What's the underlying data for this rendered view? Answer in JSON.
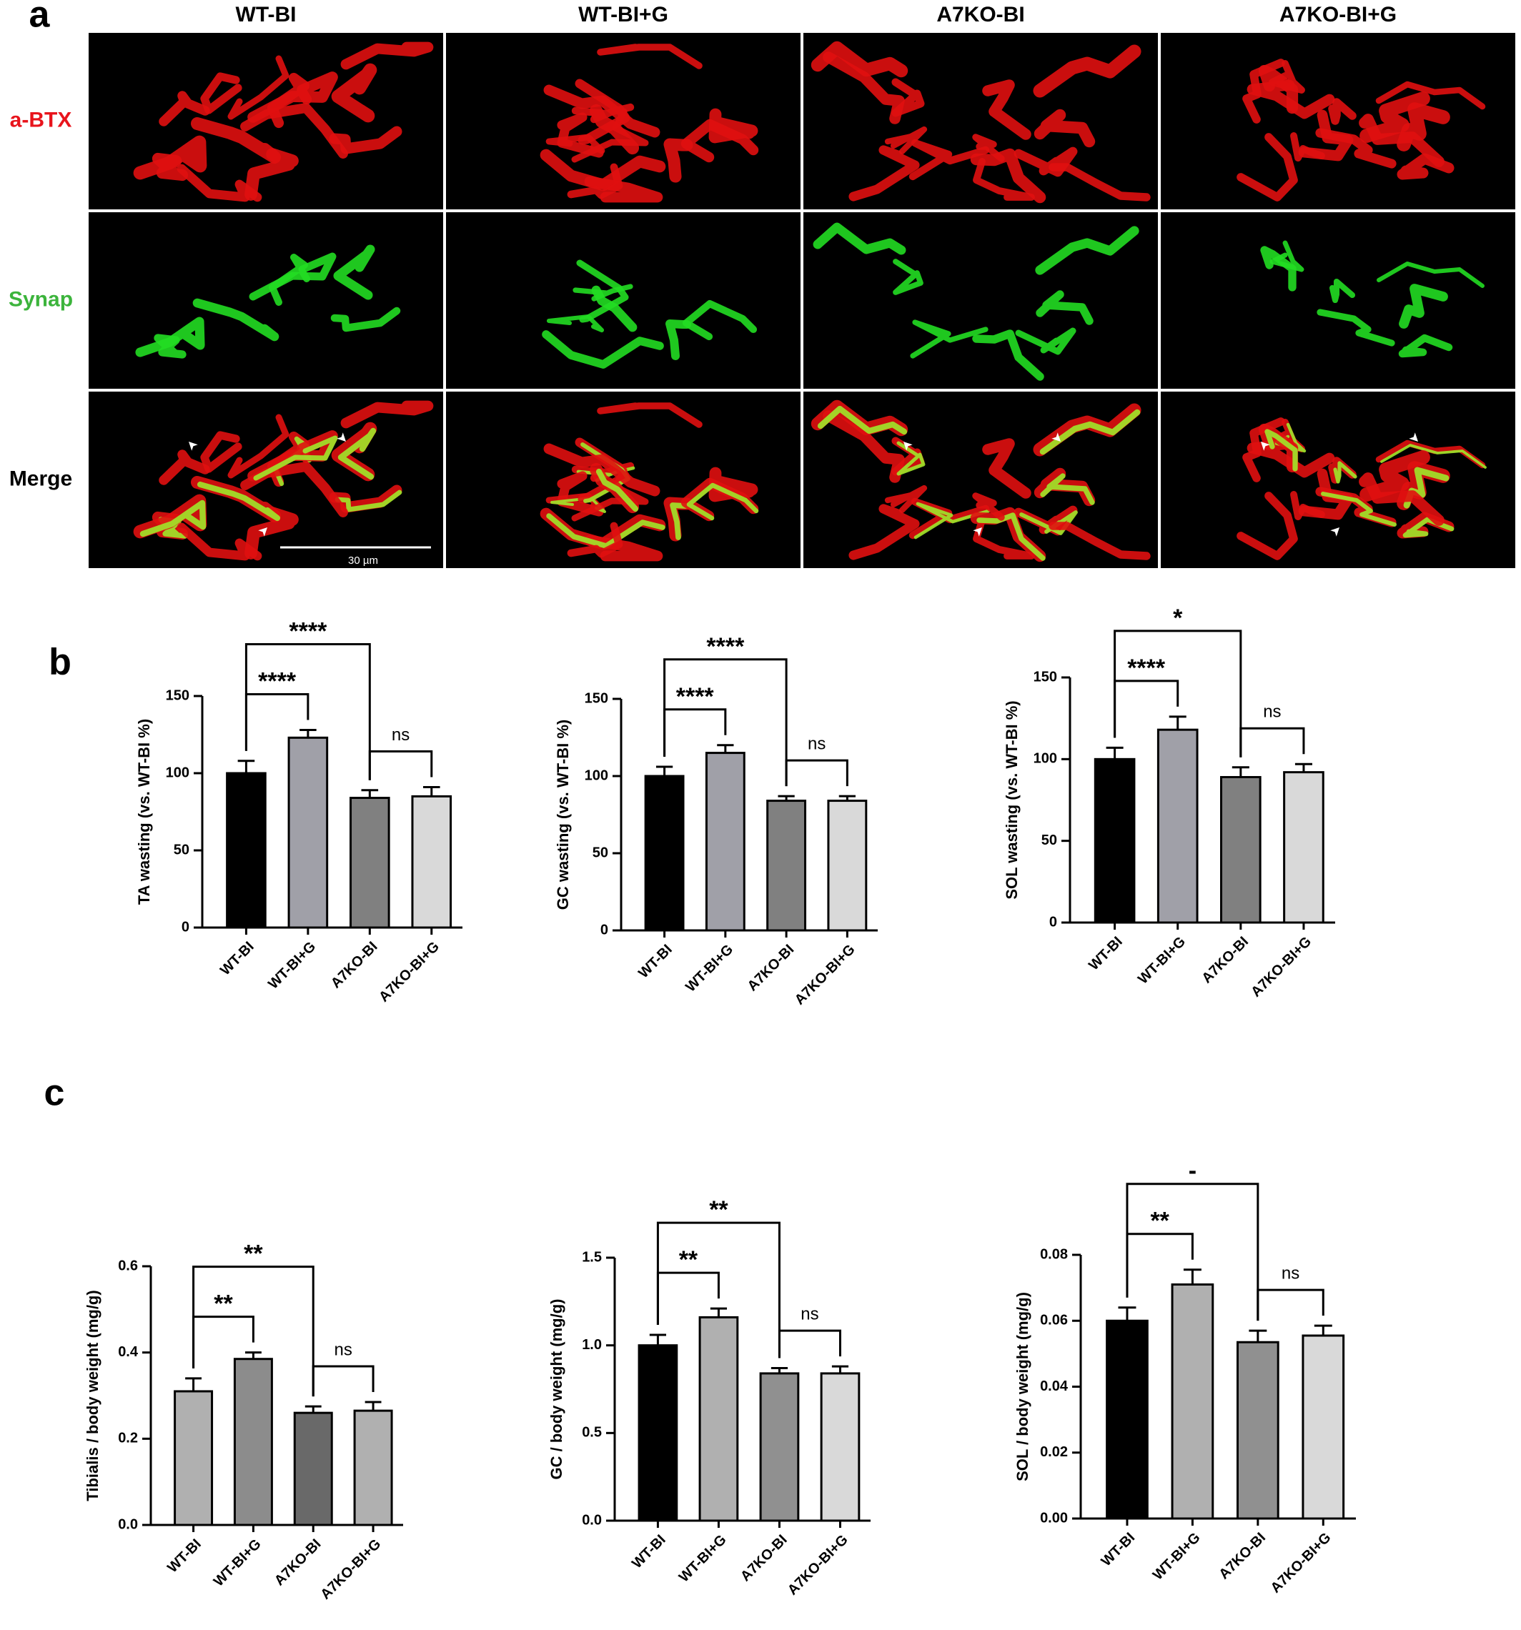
{
  "figure": {
    "panels": [
      "a",
      "b",
      "c"
    ],
    "columns": [
      "WT-BI",
      "WT-BI+G",
      "A7KO-BI",
      "A7KO-BI+G"
    ],
    "rows": [
      {
        "label": "a-BTX",
        "color": "#e8141c"
      },
      {
        "label": "Synap",
        "color": "#3cb43c"
      },
      {
        "label": "Merge",
        "color": "#000000"
      }
    ],
    "scale_bar": "30 µm"
  },
  "chart_data": [
    {
      "type": "bar",
      "ylabel": "TA wasting (vs. WT-BI %)",
      "categories": [
        "WT-BI",
        "WT-BI+G",
        "A7KO-BI",
        "A7KO-BI+G"
      ],
      "values": [
        100,
        123,
        84,
        85
      ],
      "errors": [
        8,
        5,
        5,
        6
      ],
      "colors": [
        "#000000",
        "#a0a0a8",
        "#808080",
        "#d9d9d9"
      ],
      "ylim": [
        0,
        150
      ],
      "yticks": [
        0,
        50,
        100,
        150
      ],
      "brackets": [
        {
          "between": [
            0,
            1
          ],
          "label": "****"
        },
        {
          "between": [
            0,
            2
          ],
          "label": "****"
        },
        {
          "between": [
            2,
            3
          ],
          "label": "ns"
        }
      ]
    },
    {
      "type": "bar",
      "ylabel": "GC wasting (vs. WT-BI %)",
      "categories": [
        "WT-BI",
        "WT-BI+G",
        "A7KO-BI",
        "A7KO-BI+G"
      ],
      "values": [
        100,
        115,
        84,
        84
      ],
      "errors": [
        6,
        5,
        3,
        3
      ],
      "colors": [
        "#000000",
        "#a0a0a8",
        "#808080",
        "#d9d9d9"
      ],
      "ylim": [
        0,
        150
      ],
      "yticks": [
        0,
        50,
        100,
        150
      ],
      "brackets": [
        {
          "between": [
            0,
            1
          ],
          "label": "****"
        },
        {
          "between": [
            0,
            2
          ],
          "label": "****"
        },
        {
          "between": [
            2,
            3
          ],
          "label": "ns"
        }
      ]
    },
    {
      "type": "bar",
      "ylabel": "SOL wasting (vs. WT-BI %)",
      "categories": [
        "WT-BI",
        "WT-BI+G",
        "A7KO-BI",
        "A7KO-BI+G"
      ],
      "values": [
        100,
        118,
        89,
        92
      ],
      "errors": [
        7,
        8,
        6,
        5
      ],
      "colors": [
        "#000000",
        "#a0a0a8",
        "#808080",
        "#d9d9d9"
      ],
      "ylim": [
        0,
        150
      ],
      "yticks": [
        0,
        50,
        100,
        150
      ],
      "brackets": [
        {
          "between": [
            0,
            1
          ],
          "label": "****"
        },
        {
          "between": [
            0,
            2
          ],
          "label": "*"
        },
        {
          "between": [
            2,
            3
          ],
          "label": "ns"
        }
      ]
    },
    {
      "type": "bar",
      "ylabel": "Tibialis / body weight (mg/g)",
      "categories": [
        "WT-BI",
        "WT-BI+G",
        "A7KO-BI",
        "A7KO-BI+G"
      ],
      "values": [
        0.31,
        0.385,
        0.26,
        0.265
      ],
      "errors": [
        0.03,
        0.015,
        0.015,
        0.02
      ],
      "colors": [
        "#b0b0b0",
        "#8c8c8c",
        "#696969",
        "#b0b0b0"
      ],
      "ylim": [
        0,
        0.6
      ],
      "yticks": [
        {
          "value": 0,
          "label": "0.0"
        },
        0.2,
        0.4,
        0.6
      ],
      "brackets": [
        {
          "between": [
            0,
            1
          ],
          "label": "**"
        },
        {
          "between": [
            0,
            2
          ],
          "label": "**"
        },
        {
          "between": [
            2,
            3
          ],
          "label": "ns"
        }
      ]
    },
    {
      "type": "bar",
      "ylabel": "GC / body weight (mg/g)",
      "categories": [
        "WT-BI",
        "WT-BI+G",
        "A7KO-BI",
        "A7KO-BI+G"
      ],
      "values": [
        1.0,
        1.16,
        0.84,
        0.84
      ],
      "errors": [
        0.06,
        0.05,
        0.03,
        0.04
      ],
      "colors": [
        "#000000",
        "#b0b0b0",
        "#909090",
        "#d9d9d9"
      ],
      "ylim": [
        0,
        1.5
      ],
      "yticks": [
        {
          "value": 0,
          "label": "0.0"
        },
        0.5,
        {
          "value": 1,
          "label": "1.0"
        },
        1.5
      ],
      "brackets": [
        {
          "between": [
            0,
            1
          ],
          "label": "**"
        },
        {
          "between": [
            0,
            2
          ],
          "label": "**"
        },
        {
          "between": [
            2,
            3
          ],
          "label": "ns"
        }
      ]
    },
    {
      "type": "bar",
      "ylabel": "SOL / body weight (mg/g)",
      "categories": [
        "WT-BI",
        "WT-BI+G",
        "A7KO-BI",
        "A7KO-BI+G"
      ],
      "values": [
        0.06,
        0.071,
        0.0535,
        0.0555
      ],
      "errors": [
        0.004,
        0.0045,
        0.0035,
        0.003
      ],
      "colors": [
        "#000000",
        "#b0b0b0",
        "#909090",
        "#d9d9d9"
      ],
      "ylim": [
        0,
        0.08
      ],
      "yticks": [
        {
          "value": 0,
          "label": "0.00"
        },
        {
          "value": 0.02,
          "label": "0.02"
        },
        {
          "value": 0.04,
          "label": "0.04"
        },
        {
          "value": 0.06,
          "label": "0.06"
        },
        {
          "value": 0.08,
          "label": "0.08"
        }
      ],
      "brackets": [
        {
          "between": [
            0,
            1
          ],
          "label": "**"
        },
        {
          "between": [
            0,
            2
          ],
          "label": "-"
        },
        {
          "between": [
            2,
            3
          ],
          "label": "ns"
        }
      ]
    }
  ]
}
